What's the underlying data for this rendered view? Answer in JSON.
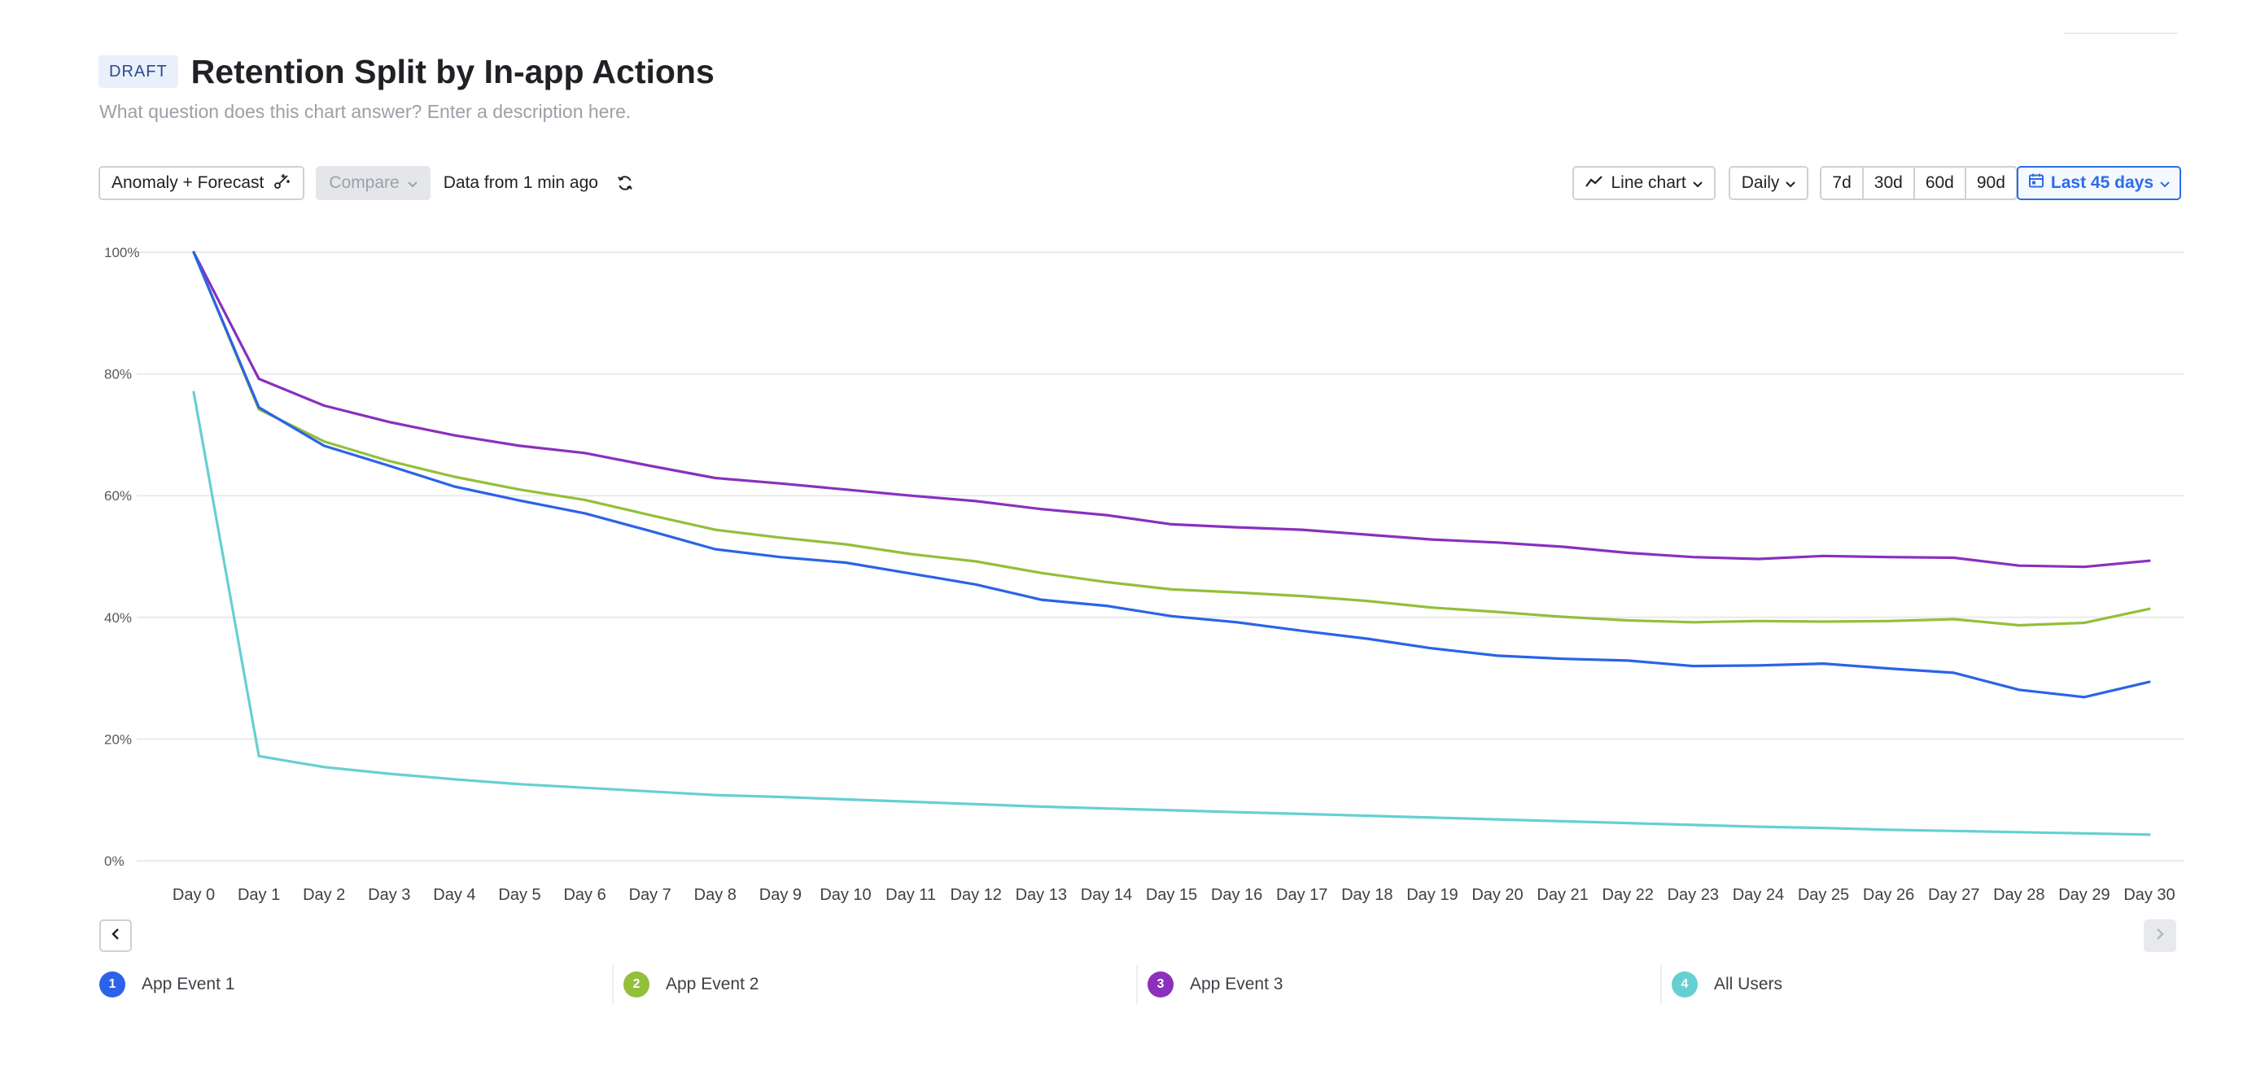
{
  "header": {
    "badge": "DRAFT",
    "title": "Retention Split by In-app Actions",
    "description": "What question does this chart answer? Enter a description here."
  },
  "toolbar": {
    "anomaly_label": "Anomaly + Forecast",
    "compare_label": "Compare",
    "data_freshness": "Data from 1 min ago",
    "chart_type_label": "Line chart",
    "granularity_label": "Daily",
    "ranges": [
      "7d",
      "30d",
      "60d",
      "90d"
    ],
    "active_range_label": "Last 45 days"
  },
  "colors": {
    "accent": "#2c6ce8",
    "grid": "#e8eaed"
  },
  "legend": [
    {
      "index": "1",
      "label": "App Event 1",
      "color": "#2a63e8"
    },
    {
      "index": "2",
      "label": "App Event 2",
      "color": "#93bf3a"
    },
    {
      "index": "3",
      "label": "App Event 3",
      "color": "#8a2fbe"
    },
    {
      "index": "4",
      "label": "All Users",
      "color": "#66cfd2"
    }
  ],
  "chart_data": {
    "type": "line",
    "title": "",
    "xlabel": "",
    "ylabel": "",
    "ylim": [
      0,
      100
    ],
    "y_ticks": [
      "0%",
      "20%",
      "40%",
      "60%",
      "80%",
      "100%"
    ],
    "y_tick_values": [
      0,
      20,
      40,
      60,
      80,
      100
    ],
    "grid": true,
    "legend_position": "bottom",
    "categories": [
      "Day 0",
      "Day 1",
      "Day 2",
      "Day 3",
      "Day 4",
      "Day 5",
      "Day 6",
      "Day 7",
      "Day 8",
      "Day 9",
      "Day 10",
      "Day 11",
      "Day 12",
      "Day 13",
      "Day 14",
      "Day 15",
      "Day 16",
      "Day 17",
      "Day 18",
      "Day 19",
      "Day 20",
      "Day 21",
      "Day 22",
      "Day 23",
      "Day 24",
      "Day 25",
      "Day 26",
      "Day 27",
      "Day 28",
      "Day 29",
      "Day 30"
    ],
    "series": [
      {
        "name": "App Event 1",
        "color": "#2a63e8",
        "values": [
          100,
          74.5,
          68.2,
          64.9,
          61.5,
          59.2,
          57.1,
          54.2,
          51.2,
          49.9,
          49.0,
          47.2,
          45.4,
          42.9,
          41.9,
          40.2,
          39.2,
          37.8,
          36.5,
          34.9,
          33.7,
          33.2,
          32.9,
          32.0,
          32.1,
          32.4,
          31.6,
          30.9,
          28.1,
          26.9,
          29.4
        ]
      },
      {
        "name": "App Event 2",
        "color": "#93bf3a",
        "values": [
          100,
          74.2,
          68.9,
          65.7,
          63.1,
          61.0,
          59.3,
          56.8,
          54.4,
          53.1,
          52.0,
          50.4,
          49.2,
          47.3,
          45.8,
          44.6,
          44.1,
          43.5,
          42.7,
          41.6,
          40.9,
          40.1,
          39.5,
          39.2,
          39.4,
          39.3,
          39.4,
          39.7,
          38.7,
          39.1,
          41.4
        ]
      },
      {
        "name": "App Event 3",
        "color": "#8a2fbe",
        "values": [
          100,
          79.2,
          74.8,
          72.1,
          69.9,
          68.2,
          67.0,
          64.9,
          62.9,
          62.0,
          61.0,
          60.0,
          59.1,
          57.8,
          56.8,
          55.3,
          54.8,
          54.4,
          53.6,
          52.8,
          52.3,
          51.6,
          50.6,
          49.9,
          49.6,
          50.1,
          49.9,
          49.8,
          48.5,
          48.3,
          49.3
        ]
      },
      {
        "name": "All Users",
        "color": "#66cfd2",
        "values": [
          77.0,
          17.2,
          15.4,
          14.3,
          13.4,
          12.6,
          12.0,
          11.4,
          10.8,
          10.5,
          10.1,
          9.7,
          9.3,
          8.9,
          8.6,
          8.3,
          8.0,
          7.7,
          7.4,
          7.1,
          6.8,
          6.5,
          6.2,
          5.9,
          5.6,
          5.4,
          5.1,
          4.9,
          4.7,
          4.5,
          4.3
        ]
      }
    ]
  }
}
